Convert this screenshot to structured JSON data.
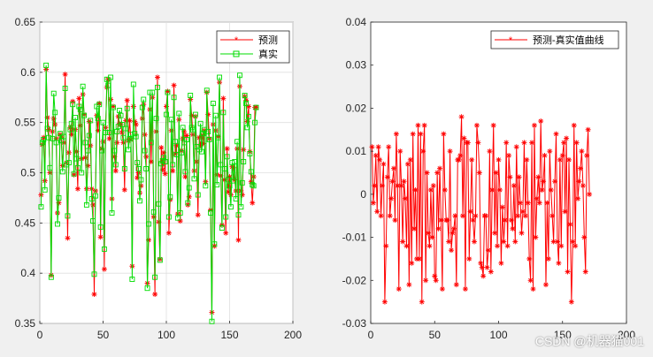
{
  "chart_data": [
    {
      "type": "line",
      "title": "",
      "xlabel": "",
      "ylabel": "",
      "xlim": [
        0,
        200
      ],
      "ylim": [
        0.35,
        0.65
      ],
      "xticks": [
        "0",
        "50",
        "100",
        "150",
        "200"
      ],
      "yticks": [
        "0.35",
        "0.4",
        "0.45",
        "0.5",
        "0.55",
        "0.6",
        "0.65"
      ],
      "grid": true,
      "legend_position": "top-right",
      "series": [
        {
          "name": "预测",
          "color": "#ff0000",
          "marker": "asterisk",
          "values": [
            0.478,
            0.528,
            0.535,
            0.492,
            0.603,
            0.555,
            0.543,
            0.5,
            0.398,
            0.541,
            0.554,
            0.548,
            0.534,
            0.46,
            0.47,
            0.538,
            0.535,
            0.507,
            0.53,
            0.598,
            0.51,
            0.435,
            0.52,
            0.545,
            0.538,
            0.571,
            0.498,
            0.543,
            0.521,
            0.484,
            0.574,
            0.547,
            0.514,
            0.578,
            0.558,
            0.515,
            0.484,
            0.507,
            0.551,
            0.527,
            0.484,
            0.468,
            0.379,
            0.482,
            0.557,
            0.542,
            0.569,
            0.436,
            0.524,
            0.531,
            0.404,
            0.545,
            0.585,
            0.593,
            0.534,
            0.573,
            0.474,
            0.566,
            0.516,
            0.502,
            0.53,
            0.556,
            0.549,
            0.548,
            0.54,
            0.53,
            0.483,
            0.552,
            0.572,
            0.532,
            0.552,
            0.533,
            0.407,
            0.566,
            0.551,
            0.548,
            0.495,
            0.5,
            0.48,
            0.487,
            0.554,
            0.568,
            0.538,
            0.516,
            0.39,
            0.433,
            0.563,
            0.511,
            0.575,
            0.456,
            0.379,
            0.541,
            0.595,
            0.451,
            0.414,
            0.525,
            0.503,
            0.52,
            0.499,
            0.566,
            0.581,
            0.44,
            0.473,
            0.542,
            0.502,
            0.587,
            0.519,
            0.527,
            0.459,
            0.553,
            0.452,
            0.522,
            0.534,
            0.541,
            0.496,
            0.537,
            0.468,
            0.476,
            0.573,
            0.557,
            0.538,
            0.502,
            0.556,
            0.511,
            0.458,
            0.535,
            0.527,
            0.537,
            0.529,
            0.542,
            0.491,
            0.58,
            0.558,
            0.534,
            0.463,
            0.361,
            0.548,
            0.427,
            0.542,
            0.498,
            0.536,
            0.59,
            0.497,
            0.448,
            0.574,
            0.493,
            0.44,
            0.524,
            0.481,
            0.496,
            0.478,
            0.506,
            0.505,
            0.493,
            0.482,
            0.524,
            0.433,
            0.586,
            0.482,
            0.478,
            0.523,
            0.576,
            0.572,
            0.551,
            0.566,
            0.521,
            0.491,
            0.47,
            0.496,
            0.565,
            0.565
          ]
        },
        {
          "name": "真实",
          "color": "#00dd00",
          "marker": "square",
          "values": [
            0.466,
            0.53,
            0.533,
            0.483,
            0.607,
            0.544,
            0.535,
            0.505,
            0.396,
            0.534,
            0.579,
            0.56,
            0.53,
            0.449,
            0.475,
            0.539,
            0.532,
            0.501,
            0.536,
            0.584,
            0.508,
            0.457,
            0.51,
            0.543,
            0.549,
            0.568,
            0.499,
            0.555,
            0.514,
            0.505,
            0.566,
            0.563,
            0.5,
            0.586,
            0.557,
            0.53,
            0.468,
            0.522,
            0.537,
            0.552,
            0.474,
            0.452,
            0.399,
            0.477,
            0.566,
            0.554,
            0.568,
            0.446,
            0.522,
            0.55,
            0.424,
            0.54,
            0.593,
            0.587,
            0.54,
            0.595,
            0.46,
            0.565,
            0.522,
            0.508,
            0.541,
            0.546,
            0.562,
            0.557,
            0.548,
            0.535,
            0.504,
            0.544,
            0.564,
            0.523,
            0.534,
            0.538,
            0.394,
            0.588,
            0.539,
            0.536,
            0.51,
            0.504,
            0.472,
            0.493,
            0.565,
            0.573,
            0.522,
            0.504,
            0.385,
            0.449,
            0.58,
            0.53,
            0.58,
            0.461,
            0.396,
            0.554,
            0.585,
            0.469,
            0.413,
            0.509,
            0.512,
            0.515,
            0.511,
            0.558,
            0.58,
            0.456,
            0.476,
            0.553,
            0.508,
            0.575,
            0.531,
            0.518,
            0.455,
            0.559,
            0.46,
            0.52,
            0.545,
            0.53,
            0.501,
            0.533,
            0.47,
            0.485,
            0.577,
            0.545,
            0.543,
            0.494,
            0.558,
            0.526,
            0.478,
            0.523,
            0.549,
            0.521,
            0.539,
            0.543,
            0.487,
            0.582,
            0.541,
            0.533,
            0.46,
            0.352,
            0.569,
            0.429,
            0.557,
            0.488,
            0.535,
            0.595,
            0.508,
            0.445,
            0.56,
            0.504,
            0.456,
            0.516,
            0.493,
            0.487,
            0.466,
            0.51,
            0.492,
            0.511,
            0.474,
            0.531,
            0.458,
            0.597,
            0.466,
            0.49,
            0.511,
            0.577,
            0.569,
            0.545,
            0.556,
            0.519,
            0.501,
            0.488,
            0.487,
            0.55,
            0.565
          ]
        }
      ]
    },
    {
      "type": "line",
      "title": "",
      "xlabel": "",
      "ylabel": "",
      "xlim": [
        0,
        200
      ],
      "ylim": [
        -0.03,
        0.04
      ],
      "xticks": [
        "0",
        "50",
        "100",
        "150",
        "200"
      ],
      "yticks": [
        "-0.03",
        "-0.02",
        "-0.01",
        "0",
        "0.01",
        "0.02",
        "0.03",
        "0.04"
      ],
      "grid": false,
      "legend_position": "top-right",
      "series": [
        {
          "name": "预测-真实值曲线",
          "color": "#ff0000",
          "marker": "asterisk",
          "values": [
            0.011,
            -0.002,
            0.002,
            0.009,
            -0.004,
            0.011,
            0.008,
            -0.005,
            0.002,
            0.007,
            -0.025,
            -0.012,
            0.004,
            0.011,
            -0.005,
            -0.001,
            0.003,
            0.006,
            -0.006,
            0.014,
            0.002,
            -0.022,
            0.01,
            0.002,
            -0.011,
            0.003,
            -0.001,
            -0.012,
            0.007,
            -0.021,
            0.008,
            -0.016,
            0.014,
            -0.008,
            0.001,
            -0.015,
            0.016,
            -0.015,
            0.014,
            -0.025,
            0.01,
            0.016,
            -0.02,
            0.005,
            -0.009,
            -0.012,
            0.001,
            -0.01,
            0.002,
            -0.019,
            -0.02,
            0.005,
            -0.008,
            0.006,
            -0.006,
            -0.022,
            0.014,
            0.001,
            -0.006,
            -0.006,
            -0.011,
            0.01,
            -0.013,
            -0.009,
            -0.008,
            -0.005,
            -0.021,
            0.008,
            0.008,
            0.009,
            0.018,
            -0.005,
            0.013,
            -0.022,
            0.012,
            0.012,
            -0.015,
            -0.004,
            0.008,
            -0.006,
            -0.011,
            -0.005,
            0.016,
            0.012,
            0.005,
            -0.016,
            -0.017,
            -0.019,
            -0.005,
            -0.005,
            -0.017,
            -0.013,
            0.01,
            -0.018,
            0.001,
            0.016,
            -0.009,
            0.005,
            -0.012,
            0.008,
            0.001,
            -0.016,
            -0.003,
            -0.011,
            -0.006,
            0.012,
            -0.012,
            0.009,
            0.004,
            -0.006,
            -0.008,
            0.002,
            -0.011,
            0.011,
            -0.005,
            0.004,
            -0.002,
            -0.009,
            -0.004,
            0.012,
            -0.005,
            0.008,
            -0.002,
            -0.015,
            -0.02,
            0.012,
            -0.022,
            0.016,
            -0.01,
            -0.001,
            0.004,
            -0.002,
            0.017,
            0.001,
            0.003,
            0.009,
            -0.021,
            -0.002,
            -0.015,
            0.01,
            0.001,
            -0.005,
            -0.011,
            0.003,
            0.014,
            -0.011,
            -0.016,
            0.008,
            -0.012,
            0.009,
            0.012,
            -0.004,
            0.013,
            -0.018,
            0.008,
            -0.007,
            -0.025,
            -0.011,
            0.016,
            -0.012,
            0.012,
            -0.001,
            0.003,
            0.006,
            0.01,
            0.002,
            -0.01,
            -0.018,
            0.009,
            0.015,
            0.0
          ]
        }
      ]
    }
  ],
  "watermark": "CSDN @机器猫001"
}
